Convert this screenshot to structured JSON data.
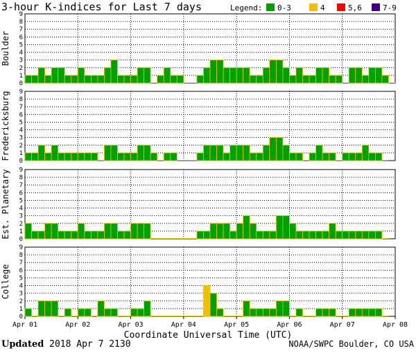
{
  "title": "3-hour K-indices for Last 7 days",
  "legend": {
    "label": "Legend:",
    "items": [
      {
        "label": "0-3",
        "color": "#00a000"
      },
      {
        "label": "4",
        "color": "#f0c000"
      },
      {
        "label": "5,6",
        "color": "#ff0000"
      },
      {
        "label": "7-9",
        "color": "#400080"
      }
    ]
  },
  "xlabel": "Coordinate Universal Time (UTC)",
  "footer": {
    "updated_label": "Updated",
    "updated_value": "2018 Apr  7 2130",
    "source": "NOAA/SWPC Boulder, CO USA"
  },
  "chart_data": {
    "type": "bar",
    "ylim": [
      0,
      9
    ],
    "yticks": [
      "0",
      "1",
      "2",
      "3",
      "4",
      "5",
      "6",
      "7",
      "8",
      "9"
    ],
    "x_ticks": [
      "Apr 01",
      "Apr 02",
      "Apr 03",
      "Apr 04",
      "Apr 05",
      "Apr 06",
      "Apr 07",
      "Apr 08"
    ],
    "bars_per_day": 8,
    "bar_colors": {
      "0-3": "#00a000",
      "4": "#f0c000",
      "5,6": "#ff0000",
      "7-9": "#400080"
    },
    "panels": [
      {
        "name": "Boulder",
        "values": [
          1,
          1,
          2,
          1,
          2,
          2,
          1,
          1,
          2,
          1,
          1,
          1,
          2,
          3,
          1,
          1,
          1,
          2,
          2,
          0,
          1,
          2,
          1,
          1,
          0,
          0,
          1,
          2,
          3,
          3,
          2,
          2,
          2,
          2,
          1,
          1,
          2,
          3,
          3,
          2,
          1,
          2,
          1,
          1,
          2,
          2,
          1,
          1,
          0,
          2,
          2,
          1,
          2,
          2,
          1,
          0
        ]
      },
      {
        "name": "Fredericksburg",
        "values": [
          1,
          1,
          2,
          1,
          2,
          1,
          1,
          1,
          1,
          1,
          1,
          0,
          2,
          2,
          1,
          1,
          1,
          2,
          2,
          1,
          0,
          1,
          1,
          0,
          0,
          0,
          1,
          2,
          2,
          2,
          1,
          2,
          2,
          2,
          1,
          1,
          2,
          3,
          3,
          2,
          1,
          1,
          0,
          1,
          2,
          1,
          1,
          0,
          1,
          1,
          1,
          2,
          1,
          1,
          0
        ]
      },
      {
        "name": "Est. Planetary",
        "values": [
          2,
          1,
          1,
          2,
          2,
          1,
          1,
          1,
          2,
          1,
          1,
          1,
          2,
          2,
          1,
          1,
          2,
          2,
          2,
          0,
          0,
          0,
          0,
          0,
          0,
          0,
          1,
          1,
          2,
          2,
          2,
          1,
          2,
          3,
          2,
          1,
          1,
          1,
          3,
          3,
          2,
          1,
          1,
          1,
          1,
          1,
          2,
          1,
          1,
          1,
          1,
          1,
          1,
          1,
          0
        ]
      },
      {
        "name": "College",
        "values": [
          1,
          0,
          2,
          2,
          2,
          0,
          1,
          0,
          1,
          1,
          0,
          2,
          1,
          1,
          0,
          0,
          1,
          1,
          2,
          0,
          0,
          0,
          0,
          0,
          0,
          0,
          0,
          4,
          3,
          1,
          0,
          0,
          0,
          2,
          1,
          1,
          1,
          1,
          2,
          2,
          0,
          1,
          0,
          0,
          1,
          1,
          1,
          0,
          0,
          1,
          1,
          1,
          1,
          1,
          0
        ]
      }
    ]
  }
}
